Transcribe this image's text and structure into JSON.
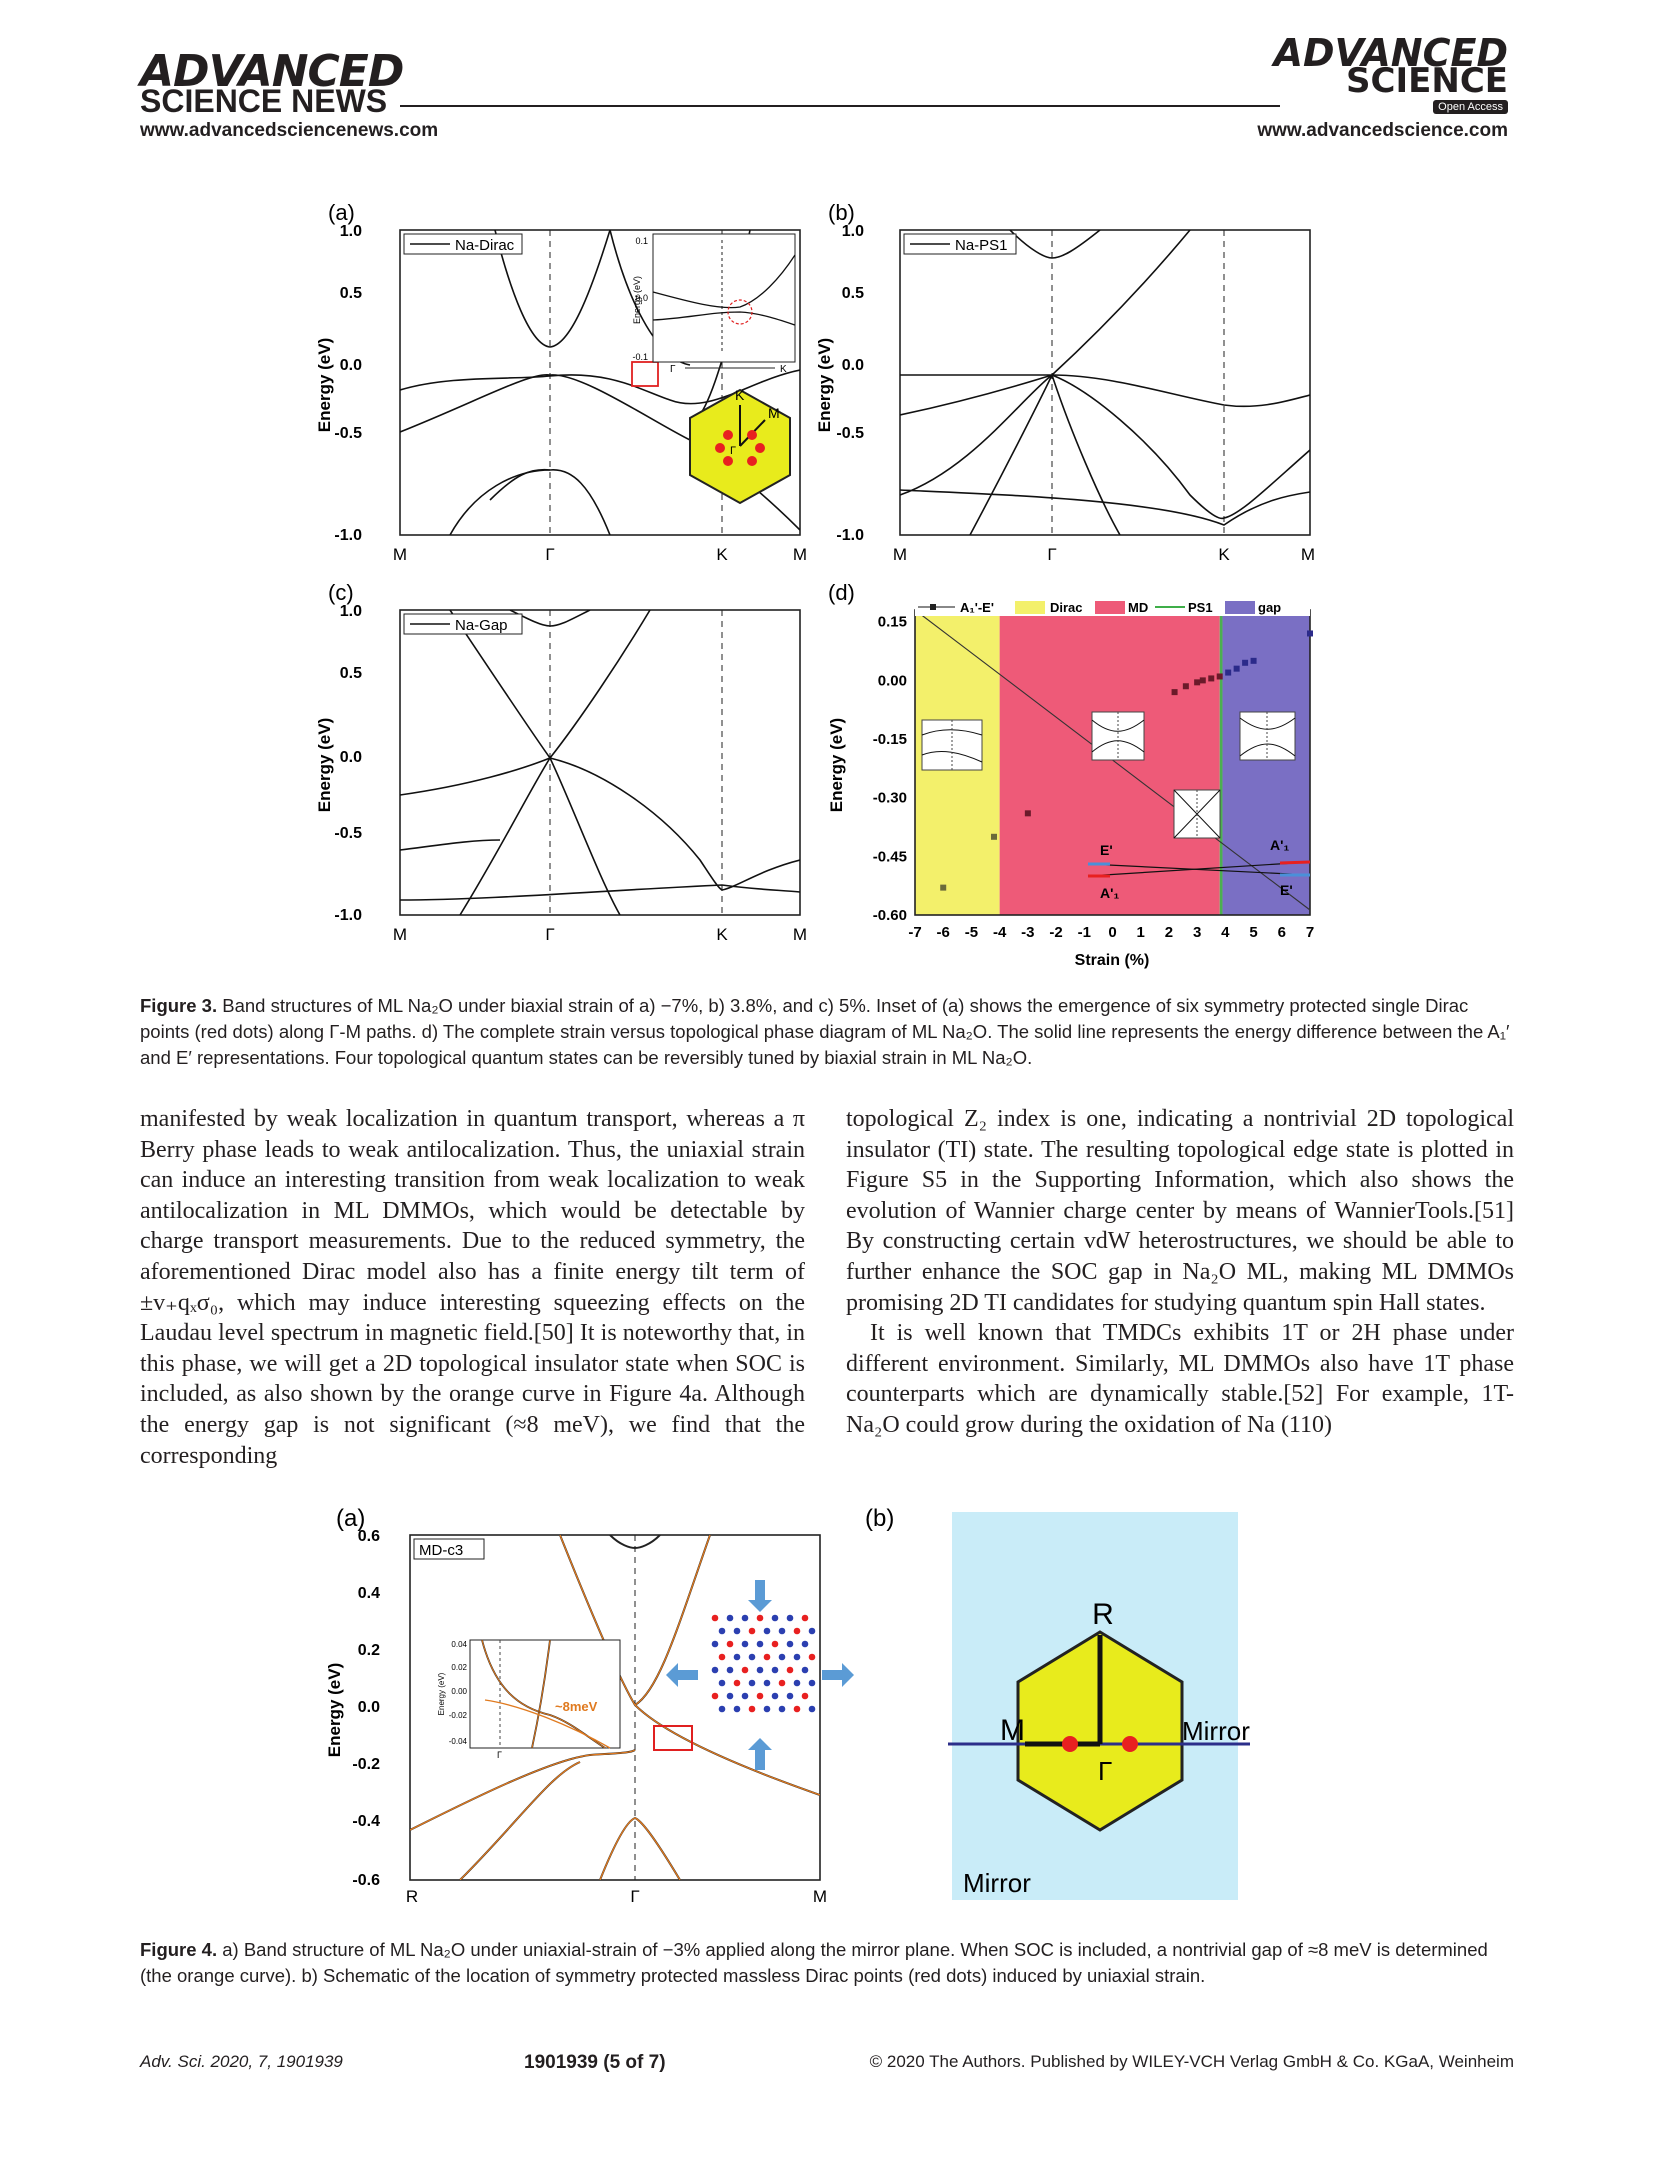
{
  "header": {
    "left_brand": "ADVANCED",
    "left_sub": "SCIENCE NEWS",
    "left_url": "www.advancedsciencenews.com",
    "right_brand": "ADVANCED",
    "right_brand2": "SCIENCE",
    "open_access": "Open Access",
    "right_url": "www.advancedscience.com"
  },
  "figure3": {
    "panel_a": {
      "label": "(a)",
      "legend": "Na-Dirac",
      "ylabel": "Energy (eV)",
      "yticks": [
        "1.0",
        "0.5",
        "0.0",
        "-0.5",
        "-1.0"
      ],
      "xticks": [
        "M",
        "Γ",
        "K",
        "M"
      ],
      "inset_ylabel": "Energy (eV)",
      "inset_yticks": [
        "0.1",
        "0.0",
        "-0.1"
      ],
      "inset_xticks": [
        "Γ",
        "K"
      ],
      "bz_labels": [
        "K",
        "M",
        "Γ"
      ]
    },
    "panel_b": {
      "label": "(b)",
      "legend": "Na-PS1",
      "ylabel": "Energy (eV)",
      "yticks": [
        "1.0",
        "0.5",
        "0.0",
        "-0.5",
        "-1.0"
      ],
      "xticks": [
        "M",
        "Γ",
        "K",
        "M"
      ]
    },
    "panel_c": {
      "label": "(c)",
      "legend": "Na-Gap",
      "ylabel": "Energy (eV)",
      "yticks": [
        "1.0",
        "0.5",
        "0.0",
        "-0.5",
        "-1.0"
      ],
      "xticks": [
        "M",
        "Γ",
        "K",
        "M"
      ]
    },
    "panel_d": {
      "label": "(d)",
      "legend_line": "A₁'-E'",
      "legend_phases": [
        "Dirac",
        "MD",
        "PS1",
        "gap"
      ],
      "ylabel": "Energy (eV)",
      "xlabel": "Strain (%)",
      "yticks": [
        "0.15",
        "0.00",
        "-0.15",
        "-0.30",
        "-0.45",
        "-0.60"
      ],
      "xticks": [
        "-7",
        "-6",
        "-5",
        "-4",
        "-3",
        "-2",
        "-1",
        "0",
        "1",
        "2",
        "3",
        "4",
        "5",
        "6",
        "7"
      ],
      "annotations": [
        "E'",
        "A'₁",
        "A'₁",
        "E'"
      ]
    },
    "caption_label": "Figure 3.",
    "caption": "Band structures of ML Na₂O under biaxial strain of a) −7%, b) 3.8%, and c) 5%. Inset of (a) shows the emergence of six symmetry protected single Dirac points (red dots) along Γ-M paths. d) The complete strain versus topological phase diagram of ML Na₂O. The solid line represents the energy difference between the A₁′ and E′ representations. Four topological quantum states can be reversibly tuned by biaxial strain in ML Na₂O."
  },
  "chart_data": [
    {
      "type": "line",
      "title": "",
      "xlabel": "Strain (%)",
      "ylabel": "Energy (eV)",
      "xlim": [
        -7,
        7
      ],
      "ylim": [
        -0.6,
        0.18
      ],
      "series": [
        {
          "name": "A₁'-E'",
          "x": [
            -6,
            -4.2,
            -3,
            2.2,
            2.6,
            3,
            3.2,
            3.5,
            3.8,
            4.1,
            4.4,
            4.7,
            5,
            7
          ],
          "y": [
            -0.53,
            -0.4,
            -0.34,
            -0.03,
            -0.015,
            -0.005,
            0.0,
            0.005,
            0.01,
            0.02,
            0.03,
            0.045,
            0.05,
            0.12
          ]
        }
      ],
      "phases": [
        {
          "name": "Dirac",
          "from": -7,
          "to": -4,
          "color": "#f3f06b"
        },
        {
          "name": "MD",
          "from": -4,
          "to": 3.8,
          "color": "#ee5a78"
        },
        {
          "name": "PS1",
          "from": 3.8,
          "to": 3.9,
          "color": "#4caf50"
        },
        {
          "name": "gap",
          "from": 3.9,
          "to": 7,
          "color": "#7a6fc4"
        }
      ]
    }
  ],
  "body": {
    "left": "manifested by weak localization in quantum transport, whereas a π Berry phase leads to weak antilocalization. Thus, the uniaxial strain can induce an interesting transition from weak localization to weak antilocalization in ML DMMOs, which would be detectable by charge transport measurements. Due to the reduced symmetry, the aforementioned Dirac model also has a finite energy tilt term of ±v₊qₓσ₀, which may induce interesting squeezing effects on the Laudau level spectrum in magnetic field.[50] It is noteworthy that, in this phase, we will get a 2D topological insulator state when SOC is included, as also shown by the orange curve in Figure 4a. Although the energy gap is not significant (≈8 meV), we find that the corresponding",
    "right_p1": "topological Z₂ index is one, indicating a nontrivial 2D topological insulator (TI) state. The resulting topological edge state is plotted in Figure S5 in the Supporting Information, which also shows the evolution of Wannier charge center by means of WannierTools.[51] By constructing certain vdW heterostructures, we should be able to further enhance the SOC gap in Na₂O ML, making ML DMMOs promising 2D TI candidates for studying quantum spin Hall states.",
    "right_p2": "It is well known that TMDCs exhibits 1T or 2H phase under different environment. Similarly, ML DMMOs also have 1T phase counterparts which are dynamically stable.[52] For example, 1T-Na₂O could grow during the oxidation of Na (110)"
  },
  "figure4": {
    "panel_a": {
      "label": "(a)",
      "legend": "MD-c3",
      "ylabel": "Energy (eV)",
      "yticks": [
        "0.6",
        "0.4",
        "0.2",
        "0.0",
        "-0.2",
        "-0.4",
        "-0.6"
      ],
      "xticks": [
        "R",
        "Γ",
        "M"
      ],
      "inset_label": "~8meV",
      "inset_yticks": [
        "0.04",
        "0.02",
        "0.00",
        "-0.02",
        "-0.04"
      ],
      "inset_xtick": "Γ",
      "inset_ylabel": "Energy (eV)"
    },
    "panel_b": {
      "label": "(b)",
      "labels": {
        "R": "R",
        "M": "M",
        "G": "Γ",
        "mirror_right": "Mirror",
        "mirror_bottom": "Mirror"
      }
    },
    "caption_label": "Figure 4.",
    "caption": "a) Band structure of ML Na₂O under uniaxial-strain of −3% applied along the mirror plane. When SOC is included, a nontrivial gap of ≈8 meV is determined (the orange curve). b) Schematic of the location of symmetry protected massless Dirac points (red dots) induced by uniaxial strain."
  },
  "footer": {
    "journal": "Adv. Sci. 2020, 7, 1901939",
    "page": "1901939  (5 of 7)",
    "copyright": "© 2020 The Authors. Published by WILEY-VCH Verlag GmbH & Co. KGaA, Weinheim"
  },
  "colors": {
    "dirac": "#f3f06b",
    "md": "#ee5a78",
    "gap": "#7a6fc4",
    "ps1": "#3fae49",
    "hex_fill": "#e8eb1c",
    "bg_b": "#c9ecf8",
    "orange": "#e07a1f",
    "red_dot": "#e82020"
  }
}
